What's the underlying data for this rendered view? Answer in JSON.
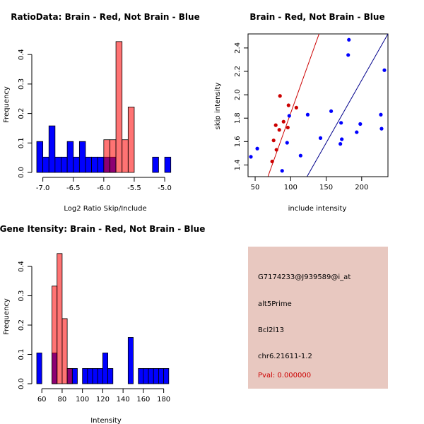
{
  "chart_data": [
    {
      "type": "histogram",
      "title": "RatioData: Brain - Red, Not Brain - Blue",
      "xlabel": "Log2 Ratio Skip/Include",
      "ylabel": "Frequency",
      "xlim": [
        -7.1,
        -4.85
      ],
      "ylim": [
        0,
        0.47
      ],
      "xticks": [
        -7.0,
        -6.5,
        -6.0,
        -5.5,
        -5.0
      ],
      "xtick_labels": [
        "-7.0",
        "-6.5",
        "-6.0",
        "-5.5",
        "-5.0"
      ],
      "yticks": [
        0.0,
        0.1,
        0.2,
        0.3,
        0.4
      ],
      "ytick_labels": [
        "0.0",
        "0.1",
        "0.2",
        "0.3",
        "0.4"
      ],
      "bin_width": 0.1,
      "series": [
        {
          "name": "Not Brain",
          "color": "#0000ff",
          "bins": [
            [
              -7.05,
              0.105
            ],
            [
              -6.95,
              0.052
            ],
            [
              -6.85,
              0.158
            ],
            [
              -6.75,
              0.052
            ],
            [
              -6.65,
              0.052
            ],
            [
              -6.55,
              0.105
            ],
            [
              -6.45,
              0.052
            ],
            [
              -6.35,
              0.105
            ],
            [
              -6.25,
              0.052
            ],
            [
              -6.15,
              0.052
            ],
            [
              -6.05,
              0.052
            ],
            [
              -5.95,
              0.052
            ],
            [
              -5.85,
              0.052
            ],
            [
              -5.15,
              0.052
            ],
            [
              -4.95,
              0.052
            ]
          ]
        },
        {
          "name": "Brain",
          "color": "#ff0000",
          "bins": [
            [
              -5.95,
              0.111
            ],
            [
              -5.85,
              0.111
            ],
            [
              -5.75,
              0.444
            ],
            [
              -5.65,
              0.111
            ],
            [
              -5.55,
              0.222
            ]
          ]
        }
      ]
    },
    {
      "type": "scatter",
      "title": "Brain - Red, Not Brain - Blue",
      "xlabel": "include intensity",
      "ylabel": "skip intensity",
      "xlim": [
        40,
        237
      ],
      "ylim": [
        1.3,
        2.52
      ],
      "xticks": [
        50,
        100,
        150,
        200
      ],
      "xtick_labels": [
        "50",
        "100",
        "150",
        "200"
      ],
      "yticks": [
        1.4,
        1.6,
        1.8,
        2.0,
        2.2,
        2.4
      ],
      "ytick_labels": [
        "1.4",
        "1.6",
        "1.8",
        "2.0",
        "2.2",
        "2.4"
      ],
      "series": [
        {
          "name": "Not Brain",
          "color": "#0000ff",
          "points": [
            [
              44,
              1.47
            ],
            [
              53,
              1.54
            ],
            [
              88,
              1.35
            ],
            [
              95,
              1.59
            ],
            [
              98,
              1.82
            ],
            [
              114,
              1.48
            ],
            [
              124,
              1.83
            ],
            [
              142,
              1.63
            ],
            [
              157,
              1.86
            ],
            [
              170,
              1.58
            ],
            [
              171,
              1.76
            ],
            [
              172,
              1.62
            ],
            [
              181,
              2.34
            ],
            [
              182,
              2.47
            ],
            [
              193,
              1.68
            ],
            [
              198,
              1.75
            ],
            [
              227,
              1.83
            ],
            [
              228,
              1.71
            ],
            [
              232,
              2.21
            ]
          ]
        },
        {
          "name": "Brain",
          "color": "#cc0000",
          "points": [
            [
              74,
              1.43
            ],
            [
              76,
              1.61
            ],
            [
              79,
              1.74
            ],
            [
              80,
              1.53
            ],
            [
              84,
              1.7
            ],
            [
              85,
              1.99
            ],
            [
              90,
              1.77
            ],
            [
              96,
              1.72
            ],
            [
              97,
              1.91
            ],
            [
              108,
              1.89
            ]
          ]
        }
      ],
      "fit_lines": [
        {
          "name": "Brain fit",
          "color": "#cc0000",
          "from": [
            68,
            1.3
          ],
          "to": [
            140,
            2.52
          ]
        },
        {
          "name": "Not Brain fit",
          "color": "#00008b",
          "from": [
            123,
            1.3
          ],
          "to": [
            237,
            2.52
          ]
        }
      ]
    },
    {
      "type": "histogram",
      "title": "Gene Itensity: Brain - Red, Not Brain - Blue",
      "xlabel": "Intensity",
      "ylabel": "Frequency",
      "xlim": [
        55,
        190
      ],
      "ylim": [
        0,
        0.47
      ],
      "xticks": [
        60,
        80,
        100,
        120,
        140,
        160,
        180
      ],
      "xtick_labels": [
        "60",
        "80",
        "100",
        "120",
        "140",
        "160",
        "180"
      ],
      "yticks": [
        0.0,
        0.1,
        0.2,
        0.3,
        0.4
      ],
      "ytick_labels": [
        "0.0",
        "0.1",
        "0.2",
        "0.3",
        "0.4"
      ],
      "bin_width": 5,
      "series": [
        {
          "name": "Not Brain",
          "color": "#0000ff",
          "bins": [
            [
              57.5,
              0.105
            ],
            [
              72.5,
              0.105
            ],
            [
              87.5,
              0.052
            ],
            [
              92.5,
              0.052
            ],
            [
              102.5,
              0.052
            ],
            [
              107.5,
              0.052
            ],
            [
              112.5,
              0.052
            ],
            [
              117.5,
              0.052
            ],
            [
              122.5,
              0.105
            ],
            [
              127.5,
              0.052
            ],
            [
              147.5,
              0.158
            ],
            [
              157.5,
              0.052
            ],
            [
              162.5,
              0.052
            ],
            [
              167.5,
              0.052
            ],
            [
              172.5,
              0.052
            ],
            [
              177.5,
              0.052
            ],
            [
              182.5,
              0.052
            ]
          ]
        },
        {
          "name": "Brain",
          "color": "#ff0000",
          "bins": [
            [
              72.5,
              0.333
            ],
            [
              77.5,
              0.444
            ],
            [
              82.5,
              0.222
            ],
            [
              87.5,
              0.052
            ]
          ]
        }
      ]
    }
  ],
  "info": {
    "probe": "G7174233@J939589@i_at",
    "event": "alt5Prime",
    "gene": "Bcl2l13",
    "location": "chr6.21611-1.2",
    "pval": "Pval: 0.000000"
  }
}
